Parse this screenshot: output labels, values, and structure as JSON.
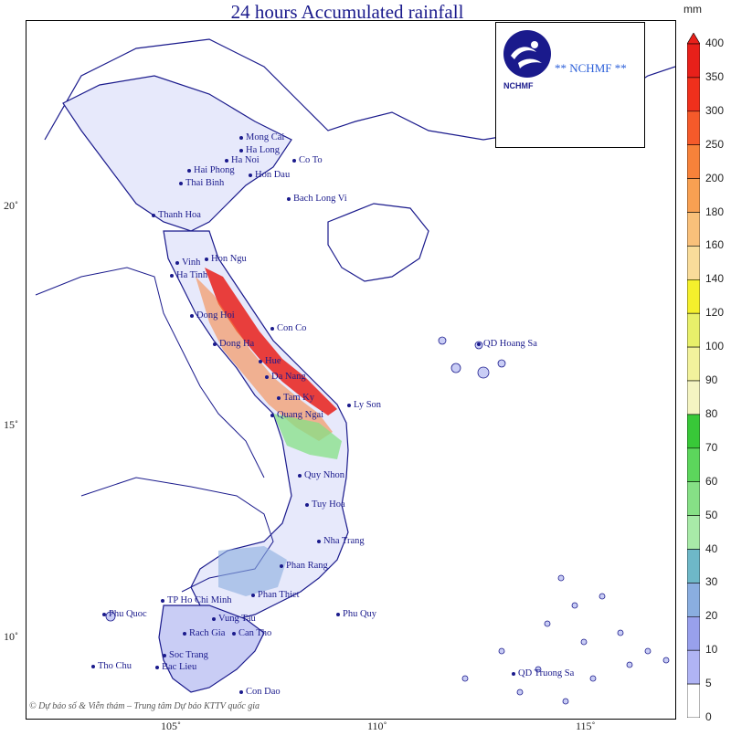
{
  "title": "24 hours Accumulated rainfall",
  "copyright": "© Dự báo số & Viễn thám – Trung tâm Dự báo KTTV quốc gia",
  "logo": {
    "icon": "nchmf-logo-icon",
    "abbr": "NCHMF",
    "text": "** NCHMF **"
  },
  "axes": {
    "latitude_labels": [
      "20˚",
      "15˚",
      "10˚"
    ],
    "longitude_labels": [
      "105˚",
      "110˚",
      "115˚"
    ]
  },
  "colorbar": {
    "unit": "mm",
    "levels": [
      "400",
      "350",
      "300",
      "250",
      "200",
      "180",
      "160",
      "140",
      "120",
      "100",
      "90",
      "80",
      "70",
      "60",
      "50",
      "40",
      "30",
      "20",
      "10",
      "5",
      "0"
    ],
    "colors": [
      "#e8201a",
      "#f0301c",
      "#f55a2a",
      "#f7823a",
      "#f8a052",
      "#f9c07a",
      "#f9dc9a",
      "#f4f02c",
      "#e8f06a",
      "#f2f29c",
      "#f4f4c2",
      "#38c838",
      "#5cd65c",
      "#86e086",
      "#a8eaa8",
      "#6eb8c8",
      "#8aaee0",
      "#98a0ec",
      "#b0b4f4",
      "#ffffff"
    ]
  },
  "places": [
    {
      "name": "Mong Cai"
    },
    {
      "name": "Ha Long"
    },
    {
      "name": "Ha Noi"
    },
    {
      "name": "Co To"
    },
    {
      "name": "Hai Phong"
    },
    {
      "name": "Hon Dau"
    },
    {
      "name": "Thai Binh"
    },
    {
      "name": "Bach Long Vi"
    },
    {
      "name": "Thanh Hoa"
    },
    {
      "name": "Hon Ngu"
    },
    {
      "name": "Vinh"
    },
    {
      "name": "Ha Tinh"
    },
    {
      "name": "Dong Hoi"
    },
    {
      "name": "Con Co"
    },
    {
      "name": "Dong Ha"
    },
    {
      "name": "Hue"
    },
    {
      "name": "Da Nang"
    },
    {
      "name": "Tam Ky"
    },
    {
      "name": "Ly Son"
    },
    {
      "name": "Quang Ngai"
    },
    {
      "name": "QD Hoang Sa"
    },
    {
      "name": "Quy Nhon"
    },
    {
      "name": "Tuy Hoa"
    },
    {
      "name": "Nha Trang"
    },
    {
      "name": "Phan Rang"
    },
    {
      "name": "Phan Thiet"
    },
    {
      "name": "TP Ho Chi Minh"
    },
    {
      "name": "Vung Tau"
    },
    {
      "name": "Phu Quy"
    },
    {
      "name": "Phu Quoc"
    },
    {
      "name": "Rach Gia"
    },
    {
      "name": "Can Tho"
    },
    {
      "name": "Soc Trang"
    },
    {
      "name": "Bac Lieu"
    },
    {
      "name": "Tho Chu"
    },
    {
      "name": "Con Dao"
    },
    {
      "name": "QD Truong Sa"
    }
  ]
}
